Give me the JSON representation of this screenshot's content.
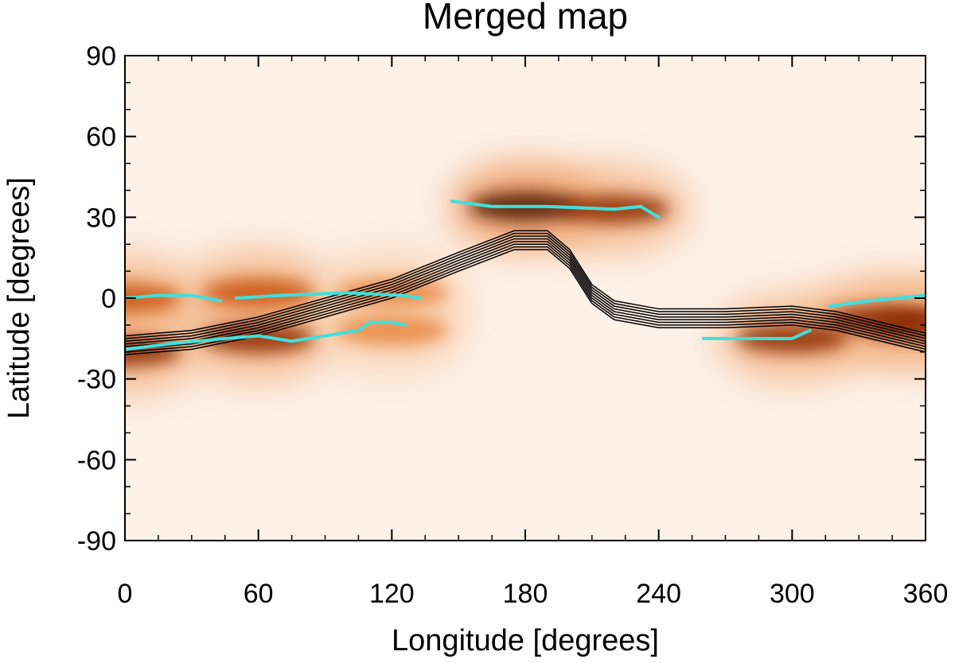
{
  "chart_data": {
    "type": "heatmap",
    "title": "Merged map",
    "xlabel": "Longitude [degrees]",
    "ylabel": "Latitude [degrees]",
    "xlim": [
      0,
      360
    ],
    "ylim": [
      -90,
      90
    ],
    "x_ticks": [
      0,
      60,
      120,
      180,
      240,
      300,
      360
    ],
    "y_ticks": [
      90,
      60,
      30,
      0,
      -30,
      -60,
      -90
    ],
    "grid": false,
    "colormap": [
      "#ffffff",
      "#fde9da",
      "#f8cda9",
      "#f2ab76",
      "#e9853f",
      "#c8520f",
      "#8c2a05",
      "#4a1200"
    ],
    "colors": {
      "cyan_trace": "#3fe0dc",
      "black_contours": "#000000"
    },
    "intensity_bands": [
      {
        "description_ref": "main",
        "points": [
          {
            "x": 0,
            "y": 0,
            "intensity": 0.75
          },
          {
            "x": 0,
            "y": -20,
            "intensity": 0.9
          },
          {
            "x": 60,
            "y": -15,
            "intensity": 0.85
          },
          {
            "x": 60,
            "y": 2,
            "intensity": 0.65
          },
          {
            "x": 120,
            "y": -12,
            "intensity": 0.6
          },
          {
            "x": 120,
            "y": 2,
            "intensity": 0.55
          },
          {
            "x": 180,
            "y": 34,
            "intensity": 0.95
          },
          {
            "x": 220,
            "y": 33,
            "intensity": 0.85
          },
          {
            "x": 300,
            "y": -15,
            "intensity": 0.9
          },
          {
            "x": 340,
            "y": -8,
            "intensity": 0.85
          },
          {
            "x": 360,
            "y": -10,
            "intensity": 0.8
          }
        ]
      }
    ],
    "cyan_segments": [
      [
        [
          0,
          0
        ],
        [
          15,
          1
        ],
        [
          30,
          1
        ],
        [
          43,
          -1
        ]
      ],
      [
        [
          50,
          0
        ],
        [
          70,
          1
        ],
        [
          100,
          2
        ],
        [
          125,
          1
        ],
        [
          133,
          0
        ]
      ],
      [
        [
          0,
          -19
        ],
        [
          20,
          -17
        ],
        [
          45,
          -15
        ],
        [
          60,
          -14
        ],
        [
          75,
          -16
        ],
        [
          90,
          -14
        ],
        [
          105,
          -12
        ],
        [
          110,
          -9
        ],
        [
          120,
          -9
        ],
        [
          126,
          -10
        ]
      ],
      [
        [
          147,
          36
        ],
        [
          165,
          34
        ],
        [
          190,
          34
        ],
        [
          220,
          33
        ],
        [
          232,
          34
        ],
        [
          240,
          30
        ]
      ],
      [
        [
          260,
          -15
        ],
        [
          285,
          -15
        ],
        [
          300,
          -15
        ],
        [
          308,
          -12
        ]
      ],
      [
        [
          317,
          -3
        ],
        [
          335,
          -1
        ],
        [
          360,
          1
        ]
      ]
    ],
    "contour_centerline": [
      [
        0,
        -17
      ],
      [
        30,
        -15
      ],
      [
        60,
        -10
      ],
      [
        90,
        -3
      ],
      [
        120,
        4
      ],
      [
        150,
        14
      ],
      [
        175,
        22
      ],
      [
        190,
        22
      ],
      [
        200,
        15
      ],
      [
        210,
        2
      ],
      [
        220,
        -4
      ],
      [
        240,
        -7
      ],
      [
        270,
        -7
      ],
      [
        300,
        -6
      ],
      [
        320,
        -8
      ],
      [
        340,
        -12
      ],
      [
        360,
        -16
      ]
    ],
    "contour_offsets": [
      -4,
      -3,
      -2,
      -1,
      0,
      1,
      2,
      3
    ]
  }
}
